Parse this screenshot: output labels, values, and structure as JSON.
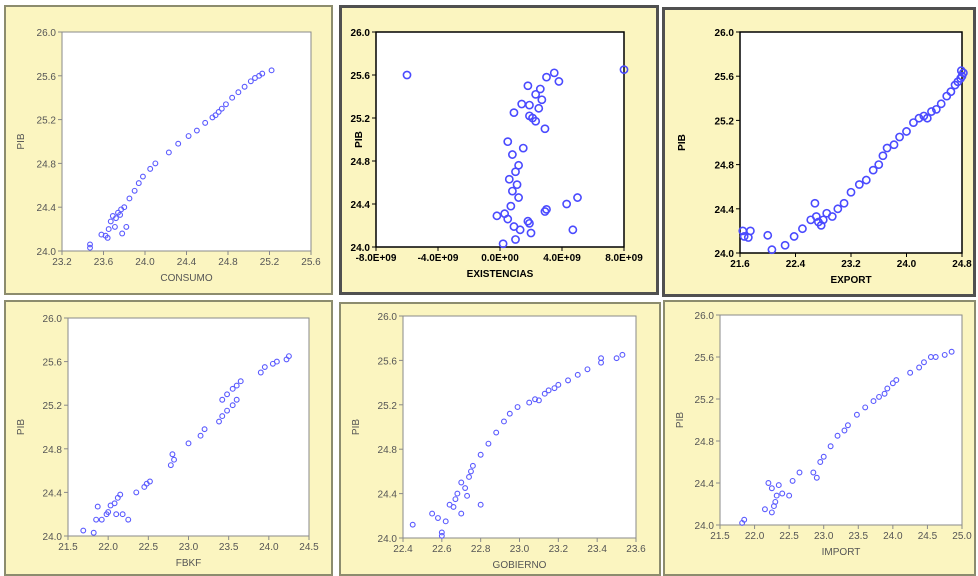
{
  "chart_data": [
    {
      "type": "scatter",
      "xlabel": "CONSUMO",
      "ylabel": "PIB",
      "xlim": [
        23.2,
        25.6
      ],
      "ylim": [
        24.0,
        26.0
      ],
      "xticks": [
        "23.2",
        "23.6",
        "24.0",
        "24.4",
        "24.8",
        "25.2",
        "25.6"
      ],
      "yticks": [
        "24.0",
        "24.4",
        "24.8",
        "25.2",
        "25.6",
        "26.0"
      ],
      "color": "#5a5aff",
      "style": "plain",
      "points": [
        [
          23.47,
          24.03
        ],
        [
          23.47,
          24.06
        ],
        [
          23.58,
          24.15
        ],
        [
          23.62,
          24.14
        ],
        [
          23.64,
          24.12
        ],
        [
          23.65,
          24.2
        ],
        [
          23.67,
          24.27
        ],
        [
          23.69,
          24.32
        ],
        [
          23.71,
          24.22
        ],
        [
          23.72,
          24.3
        ],
        [
          23.74,
          24.35
        ],
        [
          23.76,
          24.33
        ],
        [
          23.77,
          24.38
        ],
        [
          23.78,
          24.16
        ],
        [
          23.8,
          24.4
        ],
        [
          23.82,
          24.22
        ],
        [
          23.85,
          24.48
        ],
        [
          23.9,
          24.55
        ],
        [
          23.94,
          24.62
        ],
        [
          23.98,
          24.68
        ],
        [
          24.05,
          24.75
        ],
        [
          24.1,
          24.8
        ],
        [
          24.23,
          24.9
        ],
        [
          24.32,
          24.98
        ],
        [
          24.42,
          25.05
        ],
        [
          24.5,
          25.1
        ],
        [
          24.58,
          25.17
        ],
        [
          24.65,
          25.22
        ],
        [
          24.68,
          25.24
        ],
        [
          24.71,
          25.27
        ],
        [
          24.74,
          25.3
        ],
        [
          24.78,
          25.34
        ],
        [
          24.84,
          25.4
        ],
        [
          24.9,
          25.45
        ],
        [
          24.96,
          25.5
        ],
        [
          25.02,
          25.55
        ],
        [
          25.06,
          25.58
        ],
        [
          25.1,
          25.6
        ],
        [
          25.13,
          25.62
        ],
        [
          25.22,
          25.65
        ]
      ]
    },
    {
      "type": "scatter",
      "xlabel": "EXISTENCIAS",
      "ylabel": "PIB",
      "xlim": [
        -8000000000,
        8000000000
      ],
      "ylim": [
        24.0,
        26.0
      ],
      "xticks": [
        "-8.0E+09",
        "-4.0E+09",
        "0.0E+00",
        "4.0E+09",
        "8.0E+09"
      ],
      "yticks": [
        "24.0",
        "24.4",
        "24.8",
        "25.2",
        "25.6",
        "26.0"
      ],
      "color": "#4a4aff",
      "style": "bold",
      "points": [
        [
          -6000000000,
          25.6
        ],
        [
          8000000000,
          25.65
        ],
        [
          3500000000,
          25.62
        ],
        [
          3000000000,
          25.58
        ],
        [
          3800000000,
          25.54
        ],
        [
          1800000000,
          25.5
        ],
        [
          2600000000,
          25.47
        ],
        [
          2300000000,
          25.42
        ],
        [
          2700000000,
          25.37
        ],
        [
          1400000000,
          25.33
        ],
        [
          1900000000,
          25.32
        ],
        [
          2500000000,
          25.29
        ],
        [
          900000000,
          25.25
        ],
        [
          1900000000,
          25.22
        ],
        [
          2100000000,
          25.2
        ],
        [
          2300000000,
          25.17
        ],
        [
          2900000000,
          25.1
        ],
        [
          500000000,
          24.98
        ],
        [
          1500000000,
          24.92
        ],
        [
          800000000,
          24.86
        ],
        [
          1200000000,
          24.76
        ],
        [
          1000000000,
          24.7
        ],
        [
          600000000,
          24.63
        ],
        [
          1100000000,
          24.58
        ],
        [
          800000000,
          24.52
        ],
        [
          1200000000,
          24.46
        ],
        [
          4300000000,
          24.4
        ],
        [
          5000000000,
          24.46
        ],
        [
          700000000,
          24.38
        ],
        [
          3000000000,
          24.35
        ],
        [
          2900000000,
          24.33
        ],
        [
          -200000000,
          24.29
        ],
        [
          300000000,
          24.31
        ],
        [
          500000000,
          24.26
        ],
        [
          1800000000,
          24.24
        ],
        [
          1900000000,
          24.22
        ],
        [
          900000000,
          24.19
        ],
        [
          1300000000,
          24.16
        ],
        [
          2000000000,
          24.13
        ],
        [
          4700000000,
          24.16
        ],
        [
          1000000000,
          24.07
        ],
        [
          200000000,
          24.03
        ]
      ]
    },
    {
      "type": "scatter",
      "xlabel": "EXPORT",
      "ylabel": "PIB",
      "xlim": [
        21.6,
        24.8
      ],
      "ylim": [
        24.0,
        26.0
      ],
      "xticks": [
        "21.6",
        "22.4",
        "23.2",
        "24.0",
        "24.8"
      ],
      "yticks": [
        "24.0",
        "24.4",
        "24.8",
        "25.2",
        "25.6",
        "26.0"
      ],
      "color": "#4a4aff",
      "style": "bold",
      "points": [
        [
          21.64,
          24.2
        ],
        [
          21.66,
          24.15
        ],
        [
          21.72,
          24.14
        ],
        [
          21.75,
          24.2
        ],
        [
          22.0,
          24.16
        ],
        [
          22.06,
          24.03
        ],
        [
          22.25,
          24.07
        ],
        [
          22.38,
          24.15
        ],
        [
          22.5,
          24.22
        ],
        [
          22.62,
          24.3
        ],
        [
          22.68,
          24.45
        ],
        [
          22.7,
          24.33
        ],
        [
          22.73,
          24.28
        ],
        [
          22.77,
          24.25
        ],
        [
          22.8,
          24.3
        ],
        [
          22.85,
          24.36
        ],
        [
          22.93,
          24.33
        ],
        [
          23.01,
          24.4
        ],
        [
          23.1,
          24.45
        ],
        [
          23.2,
          24.55
        ],
        [
          23.32,
          24.62
        ],
        [
          23.42,
          24.66
        ],
        [
          23.52,
          24.75
        ],
        [
          23.6,
          24.8
        ],
        [
          23.66,
          24.88
        ],
        [
          23.72,
          24.95
        ],
        [
          23.82,
          24.98
        ],
        [
          23.9,
          25.05
        ],
        [
          24.0,
          25.1
        ],
        [
          24.1,
          25.18
        ],
        [
          24.18,
          25.22
        ],
        [
          24.25,
          25.24
        ],
        [
          24.3,
          25.22
        ],
        [
          24.36,
          25.28
        ],
        [
          24.43,
          25.3
        ],
        [
          24.5,
          25.35
        ],
        [
          24.58,
          25.42
        ],
        [
          24.64,
          25.46
        ],
        [
          24.7,
          25.52
        ],
        [
          24.74,
          25.55
        ],
        [
          24.78,
          25.58
        ],
        [
          24.8,
          25.6
        ],
        [
          24.82,
          25.63
        ],
        [
          24.79,
          25.65
        ]
      ]
    },
    {
      "type": "scatter",
      "xlabel": "FBKF",
      "ylabel": "PIB",
      "xlim": [
        21.5,
        24.5
      ],
      "ylim": [
        24.0,
        26.0
      ],
      "xticks": [
        "21.5",
        "22.0",
        "22.5",
        "23.0",
        "23.5",
        "24.0",
        "24.5"
      ],
      "yticks": [
        "24.0",
        "24.4",
        "24.8",
        "25.2",
        "25.6",
        "26.0"
      ],
      "color": "#5a5aff",
      "style": "plain",
      "points": [
        [
          21.69,
          24.05
        ],
        [
          21.82,
          24.03
        ],
        [
          21.85,
          24.15
        ],
        [
          21.87,
          24.27
        ],
        [
          21.92,
          24.15
        ],
        [
          21.98,
          24.2
        ],
        [
          22.0,
          24.22
        ],
        [
          22.03,
          24.28
        ],
        [
          22.08,
          24.3
        ],
        [
          22.12,
          24.35
        ],
        [
          22.15,
          24.38
        ],
        [
          22.1,
          24.2
        ],
        [
          22.18,
          24.2
        ],
        [
          22.25,
          24.15
        ],
        [
          22.35,
          24.4
        ],
        [
          22.45,
          24.45
        ],
        [
          22.48,
          24.48
        ],
        [
          22.52,
          24.5
        ],
        [
          22.78,
          24.65
        ],
        [
          22.82,
          24.7
        ],
        [
          22.8,
          24.75
        ],
        [
          23.0,
          24.85
        ],
        [
          23.15,
          24.92
        ],
        [
          23.2,
          24.98
        ],
        [
          23.38,
          25.05
        ],
        [
          23.42,
          25.1
        ],
        [
          23.48,
          25.15
        ],
        [
          23.55,
          25.2
        ],
        [
          23.6,
          25.25
        ],
        [
          23.42,
          25.25
        ],
        [
          23.48,
          25.3
        ],
        [
          23.55,
          25.35
        ],
        [
          23.6,
          25.38
        ],
        [
          23.65,
          25.42
        ],
        [
          23.9,
          25.5
        ],
        [
          23.95,
          25.55
        ],
        [
          24.05,
          25.58
        ],
        [
          24.1,
          25.6
        ],
        [
          24.22,
          25.62
        ],
        [
          24.25,
          25.65
        ]
      ]
    },
    {
      "type": "scatter",
      "xlabel": "GOBIERNO",
      "ylabel": "PIB",
      "xlim": [
        22.4,
        23.6
      ],
      "ylim": [
        24.0,
        26.0
      ],
      "xticks": [
        "22.4",
        "22.6",
        "22.8",
        "23.0",
        "23.2",
        "23.4",
        "23.6"
      ],
      "yticks": [
        "24.0",
        "24.4",
        "24.8",
        "25.2",
        "25.6",
        "26.0"
      ],
      "color": "#5a5aff",
      "style": "plain",
      "points": [
        [
          22.45,
          24.12
        ],
        [
          22.55,
          24.22
        ],
        [
          22.58,
          24.18
        ],
        [
          22.6,
          24.05
        ],
        [
          22.6,
          24.02
        ],
        [
          22.62,
          24.15
        ],
        [
          22.64,
          24.3
        ],
        [
          22.66,
          24.28
        ],
        [
          22.67,
          24.35
        ],
        [
          22.68,
          24.4
        ],
        [
          22.7,
          24.22
        ],
        [
          22.72,
          24.45
        ],
        [
          22.7,
          24.5
        ],
        [
          22.73,
          24.38
        ],
        [
          22.74,
          24.55
        ],
        [
          22.75,
          24.6
        ],
        [
          22.76,
          24.65
        ],
        [
          22.8,
          24.3
        ],
        [
          22.8,
          24.75
        ],
        [
          22.84,
          24.85
        ],
        [
          22.88,
          24.95
        ],
        [
          22.92,
          25.05
        ],
        [
          22.95,
          25.12
        ],
        [
          22.99,
          25.18
        ],
        [
          23.05,
          25.22
        ],
        [
          23.08,
          25.25
        ],
        [
          23.1,
          25.24
        ],
        [
          23.13,
          25.3
        ],
        [
          23.15,
          25.33
        ],
        [
          23.18,
          25.35
        ],
        [
          23.2,
          25.38
        ],
        [
          23.25,
          25.42
        ],
        [
          23.3,
          25.47
        ],
        [
          23.35,
          25.52
        ],
        [
          23.42,
          25.58
        ],
        [
          23.42,
          25.62
        ],
        [
          23.5,
          25.62
        ],
        [
          23.53,
          25.65
        ]
      ]
    },
    {
      "type": "scatter",
      "xlabel": "IMPORT",
      "ylabel": "PIB",
      "xlim": [
        21.5,
        25.0
      ],
      "ylim": [
        24.0,
        26.0
      ],
      "xticks": [
        "21.5",
        "22.0",
        "22.5",
        "23.0",
        "23.5",
        "24.0",
        "24.5",
        "25.0"
      ],
      "yticks": [
        "24.0",
        "24.4",
        "24.8",
        "25.2",
        "25.6",
        "26.0"
      ],
      "color": "#5a5aff",
      "style": "plain",
      "points": [
        [
          21.82,
          24.02
        ],
        [
          21.85,
          24.05
        ],
        [
          22.15,
          24.15
        ],
        [
          22.25,
          24.12
        ],
        [
          22.28,
          24.18
        ],
        [
          22.3,
          24.22
        ],
        [
          22.32,
          24.28
        ],
        [
          22.35,
          24.38
        ],
        [
          22.25,
          24.35
        ],
        [
          22.2,
          24.4
        ],
        [
          22.4,
          24.3
        ],
        [
          22.5,
          24.28
        ],
        [
          22.55,
          24.42
        ],
        [
          22.65,
          24.5
        ],
        [
          22.85,
          24.5
        ],
        [
          22.9,
          24.45
        ],
        [
          22.95,
          24.6
        ],
        [
          23.0,
          24.65
        ],
        [
          23.1,
          24.75
        ],
        [
          23.2,
          24.85
        ],
        [
          23.3,
          24.9
        ],
        [
          23.35,
          24.95
        ],
        [
          23.48,
          25.05
        ],
        [
          23.6,
          25.12
        ],
        [
          23.72,
          25.18
        ],
        [
          23.8,
          25.22
        ],
        [
          23.88,
          25.25
        ],
        [
          23.92,
          25.3
        ],
        [
          24.0,
          25.35
        ],
        [
          24.05,
          25.38
        ],
        [
          24.25,
          25.45
        ],
        [
          24.38,
          25.5
        ],
        [
          24.45,
          25.55
        ],
        [
          24.55,
          25.6
        ],
        [
          24.62,
          25.6
        ],
        [
          24.75,
          25.62
        ],
        [
          24.85,
          25.65
        ]
      ]
    }
  ]
}
